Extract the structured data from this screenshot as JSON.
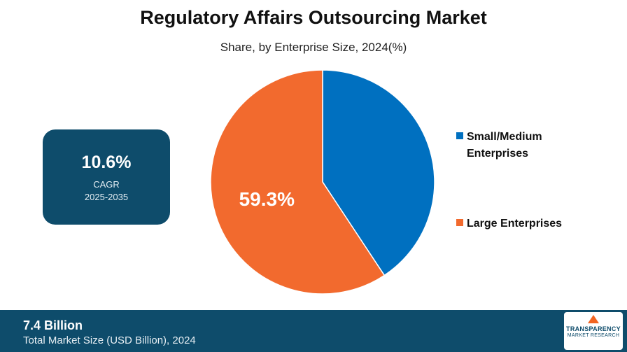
{
  "chart_data": {
    "type": "pie",
    "title": "Regulatory Affairs Outsourcing Market",
    "subtitle": "Share, by Enterprise Size, 2024(%)",
    "series": [
      {
        "name": "Small/Medium Enterprises",
        "value": 40.7,
        "color": "#0070c0"
      },
      {
        "name": "Large Enterprises",
        "value": 59.3,
        "color": "#f26a2e"
      }
    ],
    "data_labels": [
      "",
      "59.3%"
    ],
    "legend_position": "right"
  },
  "cagr": {
    "value": "10.6%",
    "label": "CAGR",
    "period": "2025-2035"
  },
  "legend": {
    "items": [
      {
        "lines": [
          "Small/Medium",
          "Enterprises"
        ],
        "color": "#0070c0"
      },
      {
        "lines": [
          "Large Enterprises"
        ],
        "color": "#f26a2e"
      }
    ]
  },
  "footer": {
    "value": "7.4 Billion",
    "label": "Total Market Size (USD Billion), 2024"
  },
  "logo": {
    "line1": "TRANSPARENCY",
    "line2": "MARKET RESEARCH"
  },
  "colors": {
    "dark_blue": "#0e4c6b",
    "blue": "#0070c0",
    "orange": "#f26a2e"
  }
}
